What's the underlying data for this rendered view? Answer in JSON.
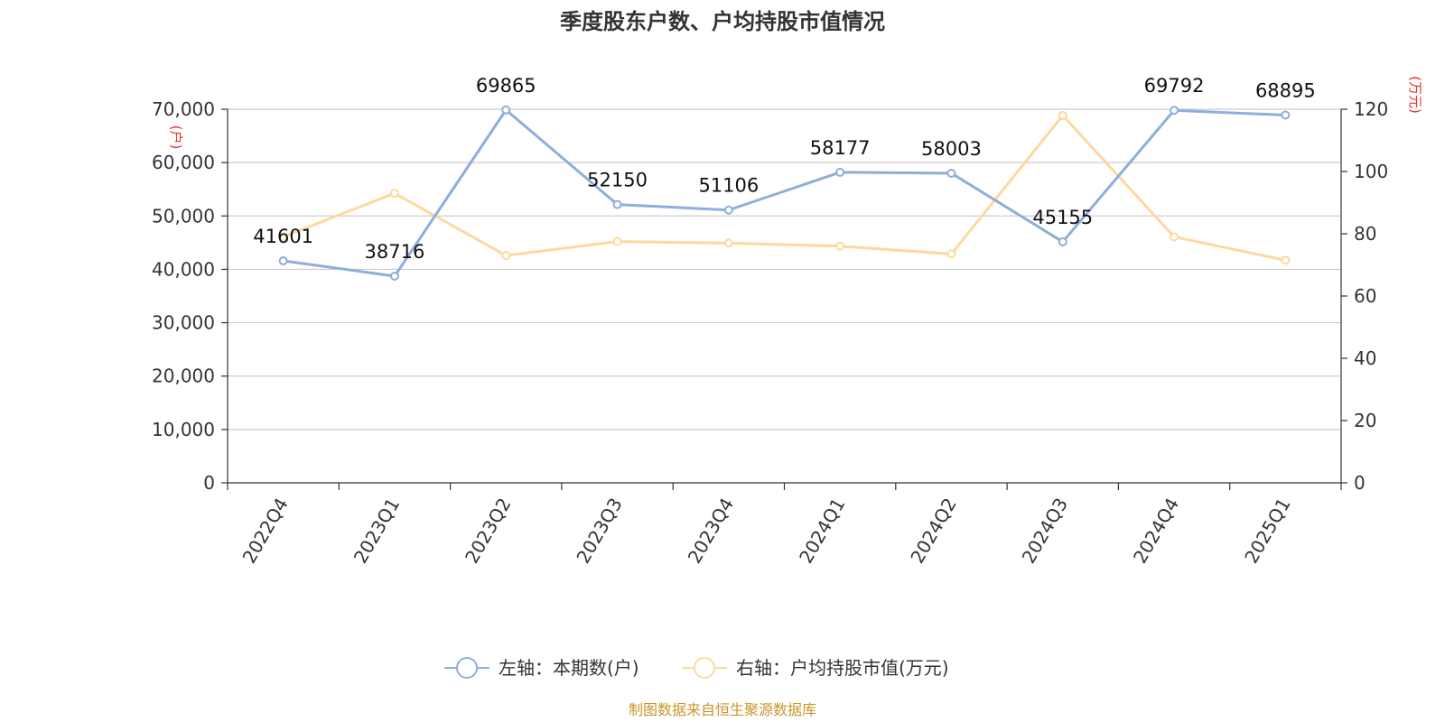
{
  "chart_data": {
    "type": "line",
    "title": "季度股东户数、户均持股市值情况",
    "categories": [
      "2022Q4",
      "2023Q1",
      "2023Q2",
      "2023Q3",
      "2023Q4",
      "2024Q1",
      "2024Q2",
      "2024Q3",
      "2024Q4",
      "2025Q1"
    ],
    "left_axis": {
      "unit": "(户)",
      "ylim": [
        0,
        70000
      ],
      "ticks": [
        0,
        10000,
        20000,
        30000,
        40000,
        50000,
        60000,
        70000
      ],
      "tick_labels": [
        "0",
        "10,000",
        "20,000",
        "30,000",
        "40,000",
        "50,000",
        "60,000",
        "70,000"
      ]
    },
    "right_axis": {
      "unit": "(万元)",
      "ylim": [
        0,
        120
      ],
      "ticks": [
        0,
        20,
        40,
        60,
        80,
        100,
        120
      ],
      "tick_labels": [
        "0",
        "20",
        "40",
        "60",
        "80",
        "100",
        "120"
      ]
    },
    "series": [
      {
        "name": "左轴：本期数(户)",
        "axis": "left",
        "color": "#8eaedb",
        "values": [
          41601,
          38716,
          69865,
          52150,
          51106,
          58177,
          58003,
          45155,
          69792,
          68895
        ],
        "labels": [
          "41601",
          "38716",
          "69865",
          "52150",
          "51106",
          "58177",
          "58003",
          "45155",
          "69792",
          "68895"
        ]
      },
      {
        "name": "右轴：户均持股市值(万元)",
        "axis": "right",
        "color": "#fdd9a0",
        "values": [
          79,
          93,
          73,
          77.5,
          77,
          76,
          73.5,
          118,
          79,
          71.5
        ]
      }
    ],
    "grid": true,
    "legend_position": "bottom-center"
  },
  "footer": {
    "source": "制图数据来自恒生聚源数据库"
  }
}
